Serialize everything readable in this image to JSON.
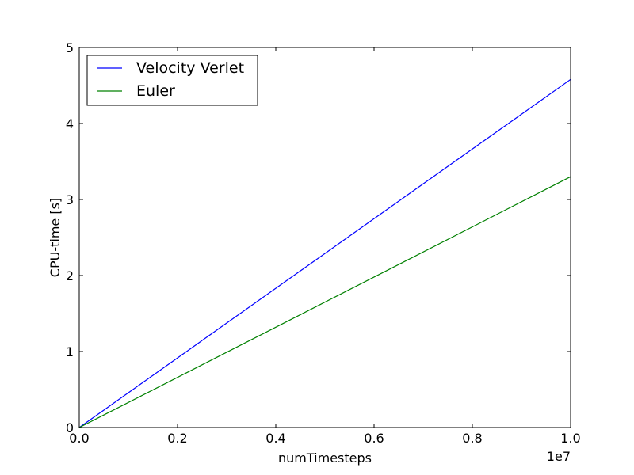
{
  "chart_data": {
    "type": "line",
    "title": "",
    "xlabel": "numTimesteps",
    "ylabel": "CPU-time [s]",
    "x_offset_label": "1e7",
    "xlim": [
      0,
      1.0
    ],
    "ylim": [
      0,
      5
    ],
    "xticks": [
      0.0,
      0.2,
      0.4,
      0.6,
      0.8,
      1.0
    ],
    "xtick_labels": [
      "0.0",
      "0.2",
      "0.4",
      "0.6",
      "0.8",
      "1.0"
    ],
    "yticks": [
      0,
      1,
      2,
      3,
      4,
      5
    ],
    "ytick_labels": [
      "0",
      "1",
      "2",
      "3",
      "4",
      "5"
    ],
    "grid": false,
    "legend_position": "top-left",
    "series": [
      {
        "name": "Velocity Verlet",
        "color": "#0000ff",
        "x": [
          0.0,
          1.0
        ],
        "y": [
          0.0,
          4.58
        ]
      },
      {
        "name": "Euler",
        "color": "#008000",
        "x": [
          0.0,
          1.0
        ],
        "y": [
          0.0,
          3.3
        ]
      }
    ]
  }
}
